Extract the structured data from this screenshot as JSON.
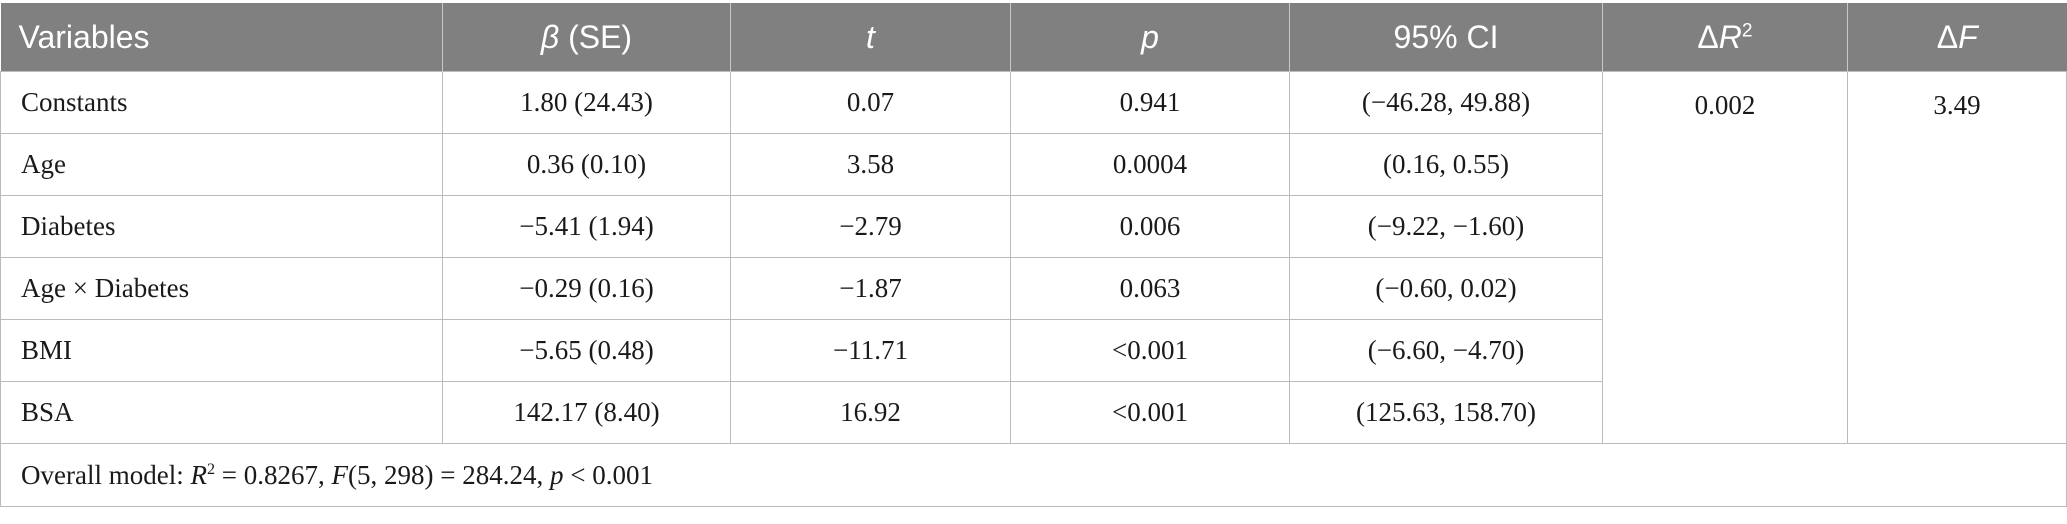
{
  "headers": {
    "variables": "Variables",
    "beta_symbol": "β",
    "beta_suffix": " (SE)",
    "t": "t",
    "p": "p",
    "ci": "95% CI",
    "delta_r2_delta": "Δ",
    "delta_r2_symbol": "R",
    "delta_r2_sup": "2",
    "delta_f_delta": "Δ",
    "delta_f_symbol": "F"
  },
  "rows": [
    {
      "variable": "Constants",
      "beta_se": "1.80 (24.43)",
      "t": "0.07",
      "p": "0.941",
      "ci": "(−46.28, 49.88)"
    },
    {
      "variable": "Age",
      "beta_se": "0.36 (0.10)",
      "t": "3.58",
      "p": "0.0004",
      "ci": "(0.16, 0.55)"
    },
    {
      "variable": "Diabetes",
      "beta_se": "−5.41 (1.94)",
      "t": "−2.79",
      "p": "0.006",
      "ci": "(−9.22, −1.60)"
    },
    {
      "variable": "Age × Diabetes",
      "beta_se": "−0.29 (0.16)",
      "t": "−1.87",
      "p": "0.063",
      "ci": "(−0.60, 0.02)"
    },
    {
      "variable": "BMI",
      "beta_se": "−5.65 (0.48)",
      "t": "−11.71",
      "p": "<0.001",
      "ci": "(−6.60, −4.70)"
    },
    {
      "variable": "BSA",
      "beta_se": "142.17 (8.40)",
      "t": "16.92",
      "p": "<0.001",
      "ci": "(125.63, 158.70)"
    }
  ],
  "delta_r2": "0.002",
  "delta_f": "3.49",
  "note": {
    "prefix": "Overall model: ",
    "r_symbol": "R",
    "r_sup": "2",
    "r_value": " = 0.8267, ",
    "f_symbol": "F",
    "f_value": "(5, 298) = 284.24, ",
    "p_symbol": "p",
    "p_value": " < 0.001"
  }
}
